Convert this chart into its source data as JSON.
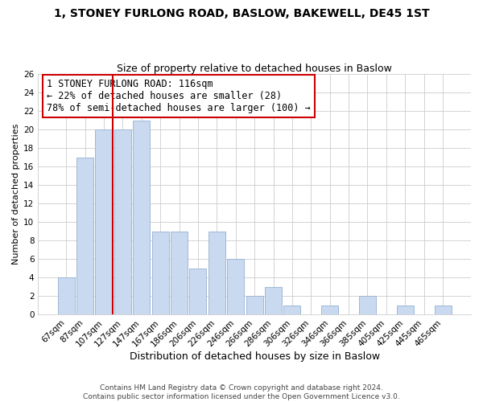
{
  "title": "1, STONEY FURLONG ROAD, BASLOW, BAKEWELL, DE45 1ST",
  "subtitle": "Size of property relative to detached houses in Baslow",
  "xlabel": "Distribution of detached houses by size in Baslow",
  "ylabel": "Number of detached properties",
  "categories": [
    "67sqm",
    "87sqm",
    "107sqm",
    "127sqm",
    "147sqm",
    "167sqm",
    "186sqm",
    "206sqm",
    "226sqm",
    "246sqm",
    "266sqm",
    "286sqm",
    "306sqm",
    "326sqm",
    "346sqm",
    "366sqm",
    "385sqm",
    "405sqm",
    "425sqm",
    "445sqm",
    "465sqm"
  ],
  "values": [
    4,
    17,
    20,
    20,
    21,
    9,
    9,
    5,
    9,
    6,
    2,
    3,
    1,
    0,
    1,
    0,
    2,
    0,
    1,
    0,
    1
  ],
  "bar_color": "#c9d9f0",
  "bar_edge_color": "#a0b8d8",
  "grid_color": "#cccccc",
  "vline_color": "#cc0000",
  "annotation_box_text": "1 STONEY FURLONG ROAD: 116sqm\n← 22% of detached houses are smaller (28)\n78% of semi-detached houses are larger (100) →",
  "annotation_box_color": "#ffffff",
  "annotation_box_edge_color": "#cc0000",
  "ylim": [
    0,
    26
  ],
  "yticks": [
    0,
    2,
    4,
    6,
    8,
    10,
    12,
    14,
    16,
    18,
    20,
    22,
    24,
    26
  ],
  "footer_text": "Contains HM Land Registry data © Crown copyright and database right 2024.\nContains public sector information licensed under the Open Government Licence v3.0.",
  "title_fontsize": 10,
  "subtitle_fontsize": 9,
  "xlabel_fontsize": 9,
  "ylabel_fontsize": 8,
  "tick_fontsize": 7.5,
  "annotation_fontsize": 8.5,
  "footer_fontsize": 6.5
}
